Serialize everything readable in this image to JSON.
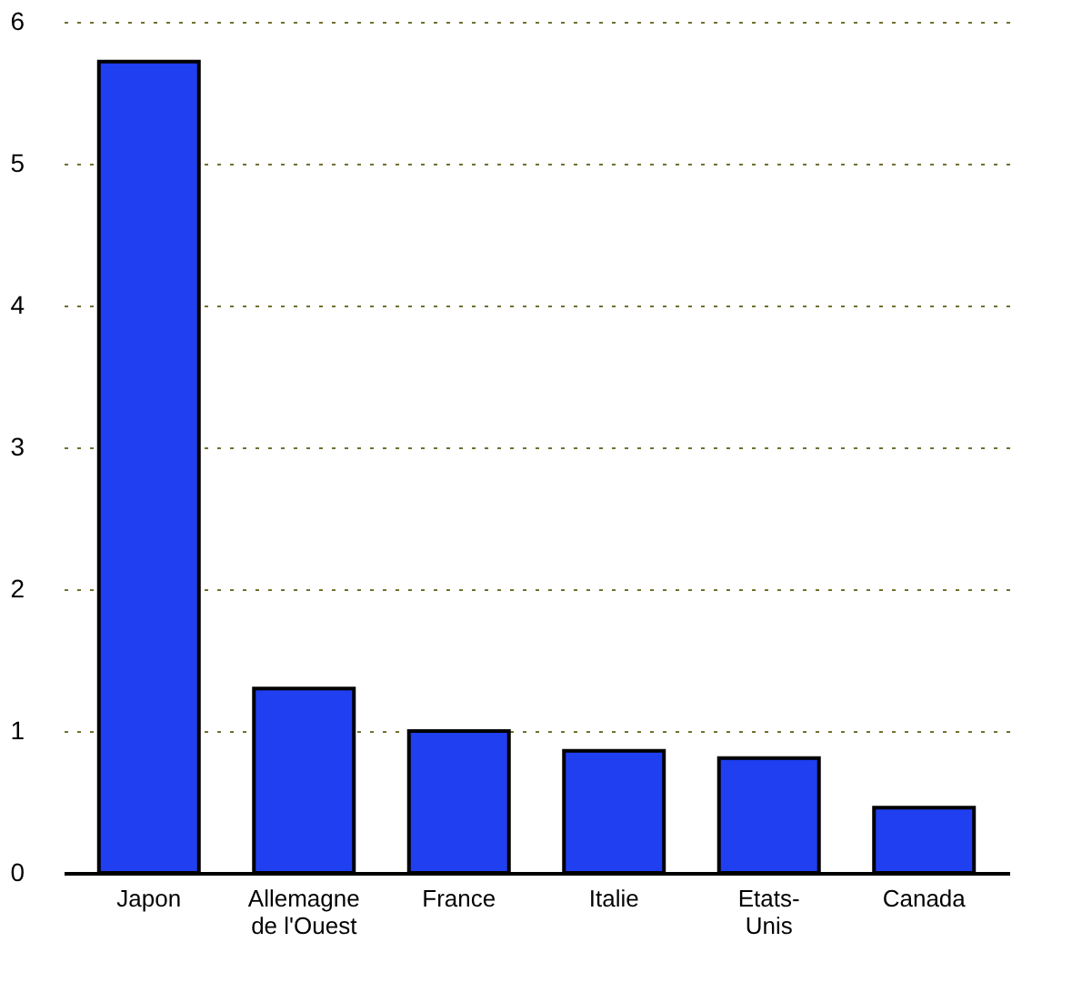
{
  "chart_data": {
    "type": "bar",
    "categories": [
      "Japon",
      "Allemagne de l'Ouest",
      "France",
      "Italie",
      "Etats-Unis",
      "Canada"
    ],
    "values": [
      5.72,
      1.3,
      1.0,
      0.86,
      0.81,
      0.46
    ],
    "color": "#1f3ff0",
    "ylim": [
      0,
      6
    ],
    "yticks": [
      0,
      1,
      2,
      3,
      4,
      5,
      6
    ],
    "grid": "y"
  }
}
